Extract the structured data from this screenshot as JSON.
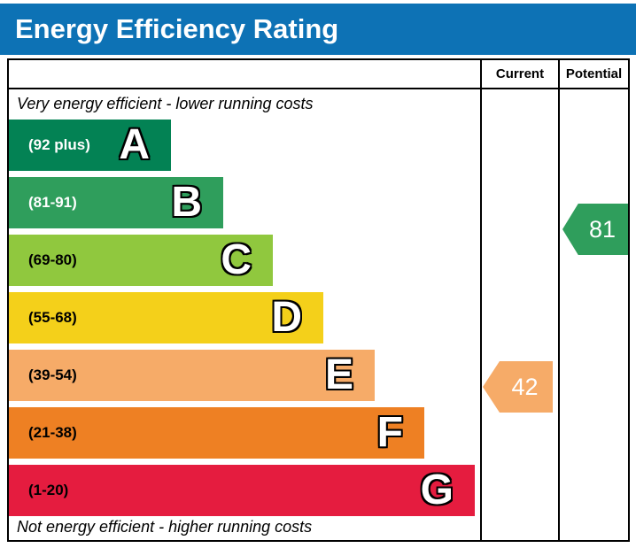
{
  "header": {
    "title": "Energy Efficiency Rating",
    "bg_color": "#0d72b5"
  },
  "table": {
    "columns": {
      "current": "Current",
      "potential": "Potential"
    },
    "top_note": "Very energy efficient - lower running costs",
    "bottom_note": "Not energy efficient - higher running costs"
  },
  "chart_data": {
    "type": "bar",
    "title": "Energy Efficiency Rating",
    "bands": [
      {
        "letter": "A",
        "range": "(92 plus)",
        "min": 92,
        "max": 100,
        "color": "#038254",
        "text_color": "#ffffff"
      },
      {
        "letter": "B",
        "range": "(81-91)",
        "min": 81,
        "max": 91,
        "color": "#2f9e5c",
        "text_color": "#ffffff"
      },
      {
        "letter": "C",
        "range": "(69-80)",
        "min": 69,
        "max": 80,
        "color": "#90c83e",
        "text_color": "#000000"
      },
      {
        "letter": "D",
        "range": "(55-68)",
        "min": 55,
        "max": 68,
        "color": "#f4d01a",
        "text_color": "#000000"
      },
      {
        "letter": "E",
        "range": "(39-54)",
        "min": 39,
        "max": 54,
        "color": "#f6ab68",
        "text_color": "#000000"
      },
      {
        "letter": "F",
        "range": "(21-38)",
        "min": 21,
        "max": 38,
        "color": "#ee8023",
        "text_color": "#000000"
      },
      {
        "letter": "G",
        "range": "(1-20)",
        "min": 1,
        "max": 20,
        "color": "#e51c3f",
        "text_color": "#000000"
      }
    ],
    "current": {
      "value": "42",
      "band": "E",
      "color": "#f6ab68"
    },
    "potential": {
      "value": "81",
      "band": "B",
      "color": "#2f9e5c"
    }
  }
}
